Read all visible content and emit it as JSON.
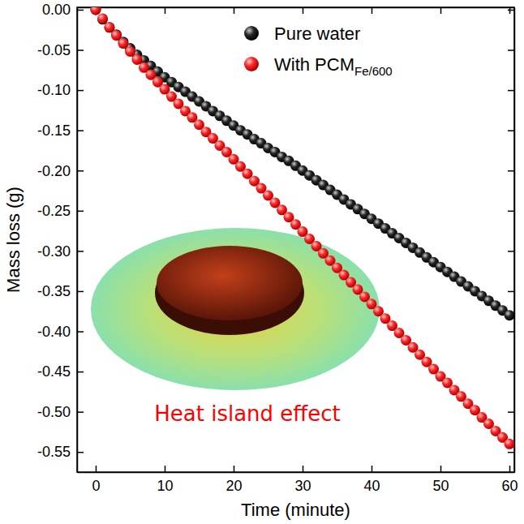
{
  "chart_data": {
    "type": "scatter",
    "x_label": "Time (minute)",
    "y_label": "Mass loss (g)",
    "x": [
      0,
      1,
      2,
      3,
      4,
      5,
      6,
      7,
      8,
      9,
      10,
      11,
      12,
      13,
      14,
      15,
      16,
      17,
      18,
      19,
      20,
      21,
      22,
      23,
      24,
      25,
      26,
      27,
      28,
      29,
      30,
      31,
      32,
      33,
      34,
      35,
      36,
      37,
      38,
      39,
      40,
      41,
      42,
      43,
      44,
      45,
      46,
      47,
      48,
      49,
      50,
      51,
      52,
      53,
      54,
      55,
      56,
      57,
      58,
      59,
      60
    ],
    "series": [
      {
        "name": "Pure water",
        "color": "#000000",
        "marker": "circle",
        "values": [
          0.0,
          -0.012,
          -0.022,
          -0.031,
          -0.04,
          -0.048,
          -0.056,
          -0.063,
          -0.07,
          -0.077,
          -0.084,
          -0.09,
          -0.096,
          -0.102,
          -0.108,
          -0.114,
          -0.12,
          -0.126,
          -0.132,
          -0.138,
          -0.144,
          -0.15,
          -0.155,
          -0.161,
          -0.166,
          -0.172,
          -0.177,
          -0.183,
          -0.188,
          -0.194,
          -0.2,
          -0.206,
          -0.212,
          -0.218,
          -0.224,
          -0.23,
          -0.236,
          -0.242,
          -0.248,
          -0.254,
          -0.26,
          -0.266,
          -0.272,
          -0.278,
          -0.284,
          -0.29,
          -0.296,
          -0.302,
          -0.308,
          -0.314,
          -0.32,
          -0.326,
          -0.332,
          -0.338,
          -0.344,
          -0.35,
          -0.356,
          -0.362,
          -0.368,
          -0.374,
          -0.38
        ]
      },
      {
        "name": "With PCMFe/600",
        "color": "#ff0000",
        "marker": "circle",
        "values": [
          0.0,
          -0.011,
          -0.022,
          -0.032,
          -0.042,
          -0.052,
          -0.062,
          -0.072,
          -0.081,
          -0.09,
          -0.099,
          -0.108,
          -0.117,
          -0.126,
          -0.134,
          -0.143,
          -0.152,
          -0.16,
          -0.169,
          -0.177,
          -0.186,
          -0.195,
          -0.204,
          -0.213,
          -0.222,
          -0.231,
          -0.24,
          -0.249,
          -0.258,
          -0.267,
          -0.276,
          -0.285,
          -0.294,
          -0.303,
          -0.312,
          -0.321,
          -0.33,
          -0.339,
          -0.348,
          -0.357,
          -0.366,
          -0.375,
          -0.384,
          -0.393,
          -0.402,
          -0.411,
          -0.42,
          -0.429,
          -0.438,
          -0.447,
          -0.456,
          -0.464,
          -0.473,
          -0.481,
          -0.49,
          -0.498,
          -0.507,
          -0.515,
          -0.524,
          -0.532,
          -0.54
        ]
      }
    ],
    "xlim": [
      -2.7,
      60.7
    ],
    "xticks": [
      0,
      10,
      20,
      30,
      40,
      50,
      60
    ],
    "ylim": [
      -0.575,
      0.003
    ],
    "yticks": [
      {
        "value": 0,
        "label": "0.00"
      },
      {
        "value": -0.05,
        "label": "-0.05"
      },
      {
        "value": -0.1,
        "label": "-0.10"
      },
      {
        "value": -0.15,
        "label": "-0.15"
      },
      {
        "value": -0.2,
        "label": "-0.20"
      },
      {
        "value": -0.25,
        "label": "-0.25"
      },
      {
        "value": -0.3,
        "label": "-0.30"
      },
      {
        "value": -0.35,
        "label": "-0.35"
      },
      {
        "value": -0.4,
        "label": "-0.40"
      },
      {
        "value": -0.45,
        "label": "-0.45"
      },
      {
        "value": -0.5,
        "label": "-0.50"
      },
      {
        "value": -0.55,
        "label": "-0.55"
      }
    ],
    "grid": false,
    "legend": "upper-right",
    "annotations": [
      {
        "text": "Heat island effect",
        "color": "#ff0000"
      }
    ]
  }
}
